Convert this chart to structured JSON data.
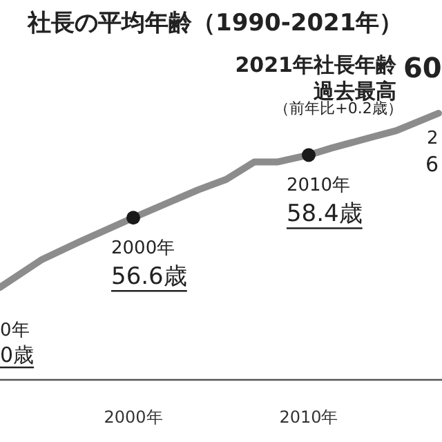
{
  "chart_data": {
    "type": "line",
    "title": "社長の平均年齢（1990-2021年）",
    "xlim": [
      1992.4,
      2017.6
    ],
    "xticks": [
      {
        "value": 2000,
        "label": "2000年"
      },
      {
        "value": 2010,
        "label": "2010年"
      }
    ],
    "tick_labels": "x",
    "grid": false,
    "series": [
      {
        "type": "line",
        "color": "#8c8c8c",
        "x": [
          1992.4,
          1994.8,
          1996.9,
          2000,
          2003.7,
          2005.3,
          2006.9,
          2008.2,
          2010,
          2011.3,
          2013.5,
          2015,
          2017.4
        ],
        "values": [
          54.6,
          55.4,
          55.9,
          56.6,
          57.4,
          57.7,
          58.2,
          58.2,
          58.4,
          58.6,
          58.9,
          59.1,
          59.6
        ]
      },
      {
        "type": "scatter",
        "color": "#1a1a1a",
        "marker": "circle",
        "x": [
          2000,
          2010
        ],
        "values": [
          56.6,
          58.4
        ],
        "value_labels": [
          "56.6歳",
          "58.4歳"
        ]
      }
    ],
    "annotations": [
      {
        "text": "2000年",
        "x": 2000,
        "y": 56.6
      },
      {
        "text": "2010年",
        "x": 2010,
        "y": 58.4
      },
      "2021年社長年齢",
      "過去最高",
      "（前年比+0.2歳）",
      "60",
      "0年",
      "0歳",
      "2",
      "6"
    ]
  }
}
